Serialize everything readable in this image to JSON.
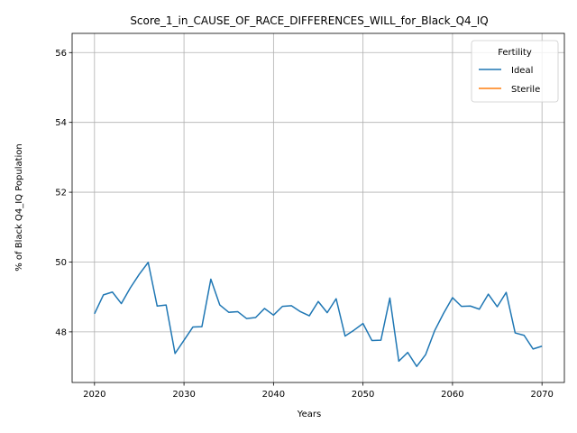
{
  "chart_data": {
    "type": "line",
    "title": "Score_1_in_CAUSE_OF_RACE_DIFFERENCES_WILL_for_Black_Q4_IQ",
    "xlabel": "Years",
    "ylabel": "% of Black Q4_IQ Population",
    "xlim": [
      2017.5,
      2072.5
    ],
    "ylim": [
      46.55,
      56.55
    ],
    "xticks": [
      2020,
      2030,
      2040,
      2050,
      2060,
      2070
    ],
    "yticks": [
      48,
      50,
      52,
      54,
      56
    ],
    "grid": true,
    "legend": {
      "title": "Fertility",
      "placement": "top-right"
    },
    "series": [
      {
        "name": "Ideal",
        "color": "#1f77b4",
        "x": [
          2020,
          2021,
          2022,
          2023,
          2024,
          2025,
          2026,
          2027,
          2028,
          2029,
          2030,
          2031,
          2032,
          2033,
          2034,
          2035,
          2036,
          2037,
          2038,
          2039,
          2040,
          2041,
          2042,
          2043,
          2044,
          2045,
          2046,
          2047,
          2048,
          2049,
          2050,
          2051,
          2052,
          2053,
          2054,
          2055,
          2056,
          2057,
          2058,
          2059,
          2060,
          2061,
          2062,
          2063,
          2064,
          2065,
          2066,
          2067,
          2068,
          2069,
          2070
        ],
        "values": [
          48.52,
          49.06,
          49.14,
          48.81,
          49.26,
          49.65,
          49.99,
          48.74,
          48.77,
          47.38,
          47.76,
          48.14,
          48.15,
          49.51,
          48.77,
          48.56,
          48.58,
          48.38,
          48.41,
          48.67,
          48.48,
          48.73,
          48.75,
          48.58,
          48.46,
          48.87,
          48.55,
          48.95,
          47.88,
          48.05,
          48.24,
          47.75,
          47.76,
          48.97,
          47.16,
          47.41,
          47.01,
          47.35,
          48.03,
          48.53,
          48.98,
          48.73,
          48.74,
          48.65,
          49.08,
          48.72,
          49.13,
          47.97,
          47.9,
          47.51,
          47.59
        ]
      },
      {
        "name": "Sterile",
        "color": "#ff7f0e",
        "x": [],
        "values": []
      }
    ]
  }
}
